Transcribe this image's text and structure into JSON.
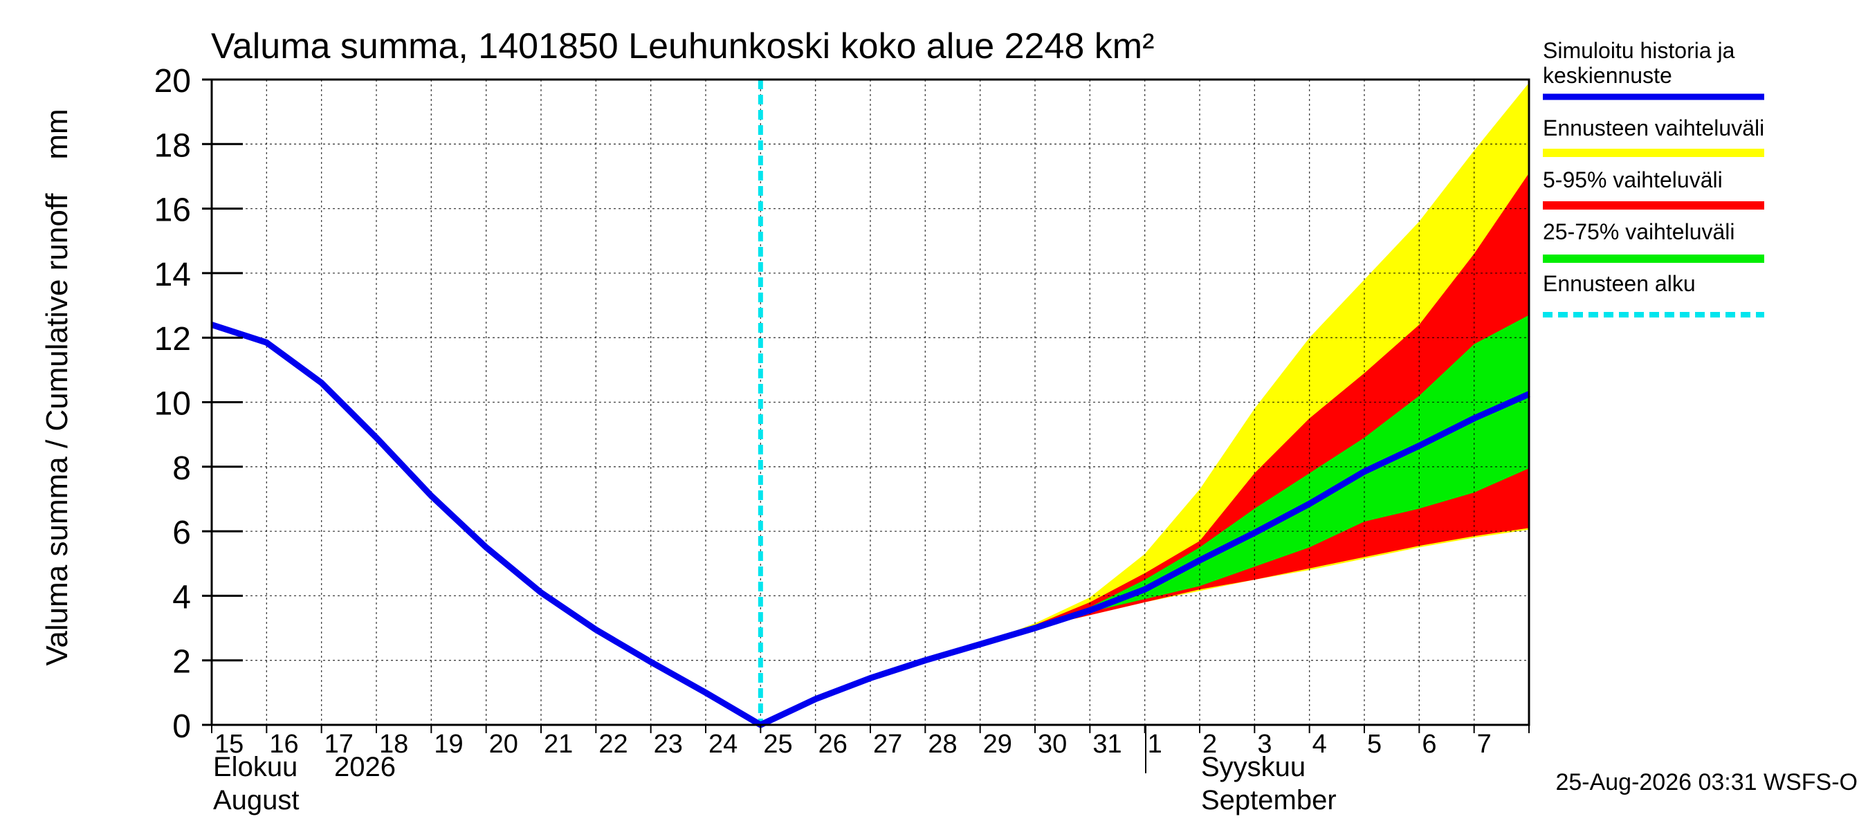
{
  "chart_data": {
    "type": "area",
    "title": "Valuma summa, 1401850 Leuhunkoski koko alue 2248 km²",
    "ylabel": "Valuma summa / Cumulative runoff    mm",
    "ylim": [
      0,
      20
    ],
    "yticks": [
      0,
      2,
      4,
      6,
      8,
      10,
      12,
      14,
      16,
      18,
      20
    ],
    "xlim": [
      0,
      24
    ],
    "x_day_labels": [
      "15",
      "16",
      "17",
      "18",
      "19",
      "20",
      "21",
      "22",
      "23",
      "24",
      "25",
      "26",
      "27",
      "28",
      "29",
      "30",
      "31",
      "1",
      "2",
      "3",
      "4",
      "5",
      "6",
      "7"
    ],
    "month_labels": {
      "august_fi": "Elokuu",
      "year": "2026",
      "august_en": "August",
      "september_fi": "Syyskuu",
      "september_en": "September"
    },
    "forecast_start_x": 10,
    "month_boundary_x": 17,
    "grid": true,
    "legend_position": "right",
    "timestamp": "25-Aug-2026 03:31 WSFS-O",
    "series": [
      {
        "name": "Simuloitu historia ja keskiennuste",
        "role": "median",
        "color": "#0000ee",
        "x": [
          0,
          1,
          2,
          3,
          4,
          5,
          6,
          7,
          8,
          9,
          10,
          11,
          12,
          13,
          14,
          15,
          16,
          17,
          18,
          19,
          20,
          21,
          22,
          23,
          24
        ],
        "y": [
          12.4,
          11.85,
          10.6,
          8.9,
          7.1,
          5.5,
          4.1,
          2.95,
          1.95,
          1.0,
          0.0,
          0.8,
          1.45,
          2.0,
          2.5,
          3.0,
          3.55,
          4.2,
          5.1,
          5.95,
          6.85,
          7.85,
          8.65,
          9.5,
          10.25
        ]
      },
      {
        "name": "Ennusteen vaihteluväli",
        "role": "band-min-max",
        "color": "#ffff00",
        "x": [
          14,
          15,
          16,
          17,
          18,
          19,
          20,
          21,
          22,
          23,
          24
        ],
        "lower": [
          2.5,
          3.0,
          3.4,
          3.8,
          4.15,
          4.5,
          4.8,
          5.15,
          5.5,
          5.8,
          6.05
        ],
        "upper": [
          2.5,
          3.15,
          3.95,
          5.3,
          7.3,
          9.8,
          12.0,
          13.8,
          15.6,
          17.8,
          19.9
        ]
      },
      {
        "name": "5-95% vaihteluväli",
        "role": "band-5-95",
        "color": "#ff0000",
        "x": [
          14,
          15,
          16,
          17,
          18,
          19,
          20,
          21,
          22,
          23,
          24
        ],
        "lower": [
          2.5,
          3.0,
          3.4,
          3.8,
          4.2,
          4.5,
          4.85,
          5.2,
          5.55,
          5.85,
          6.1
        ],
        "upper": [
          2.5,
          3.1,
          3.8,
          4.7,
          5.7,
          7.8,
          9.5,
          10.9,
          12.4,
          14.6,
          17.1
        ]
      },
      {
        "name": "25-75% vaihteluväli",
        "role": "band-25-75",
        "color": "#00ee00",
        "x": [
          14,
          15,
          16,
          17,
          18,
          19,
          20,
          21,
          22,
          23,
          24
        ],
        "lower": [
          2.5,
          3.0,
          3.5,
          3.9,
          4.3,
          4.9,
          5.5,
          6.3,
          6.7,
          7.2,
          7.95
        ],
        "upper": [
          2.5,
          3.05,
          3.65,
          4.5,
          5.5,
          6.7,
          7.8,
          8.9,
          10.2,
          11.8,
          12.7
        ]
      },
      {
        "name": "Ennusteen alku",
        "role": "forecast-start",
        "color": "#00e5ee"
      }
    ]
  }
}
